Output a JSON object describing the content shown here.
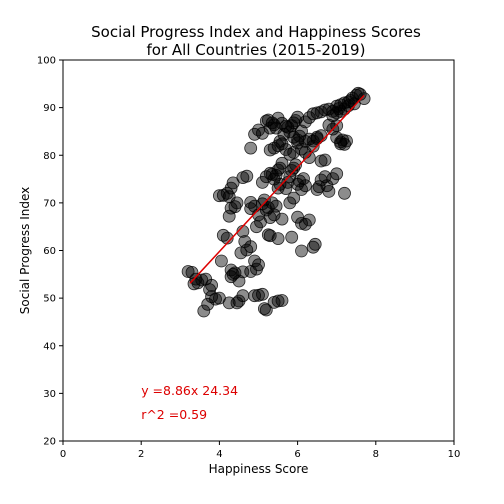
{
  "chart_data": {
    "type": "scatter",
    "title": "Social Progress Index and Happiness Scores\nfor All Countries (2015-2019)",
    "xlabel": "Happiness Score",
    "ylabel": "Social Progress Index",
    "xlim": [
      0,
      10
    ],
    "ylim": [
      20,
      100
    ],
    "x_ticks": [
      "0",
      "2",
      "4",
      "6",
      "8",
      "10"
    ],
    "y_ticks": [
      "20",
      "30",
      "40",
      "50",
      "60",
      "70",
      "80",
      "90",
      "100"
    ],
    "grid": false,
    "marker_color": "#000000",
    "marker_alpha": 0.45,
    "regression": {
      "slope": 8.86,
      "intercept": 24.34,
      "x_range": [
        3.25,
        7.7
      ],
      "color": "#dd0000",
      "equation_label": "y =8.86x 24.34",
      "r2_label": "r^2 =0.59",
      "label_anchor": [
        2.0,
        30.5
      ]
    },
    "points": [
      [
        3.2,
        55.6
      ],
      [
        3.3,
        55.4
      ],
      [
        3.4,
        54.0
      ],
      [
        3.45,
        53.2
      ],
      [
        3.35,
        53.0
      ],
      [
        3.6,
        47.3
      ],
      [
        3.7,
        48.7
      ],
      [
        3.8,
        50.3
      ],
      [
        3.75,
        51.8
      ],
      [
        3.9,
        49.8
      ],
      [
        3.65,
        54.0
      ],
      [
        3.55,
        53.8
      ],
      [
        3.8,
        52.7
      ],
      [
        4.0,
        50.0
      ],
      [
        4.05,
        57.8
      ],
      [
        4.1,
        63.2
      ],
      [
        4.2,
        62.6
      ],
      [
        4.3,
        55.9
      ],
      [
        4.25,
        49.0
      ],
      [
        4.3,
        54.5
      ],
      [
        4.35,
        55.0
      ],
      [
        4.4,
        55.3
      ],
      [
        4.45,
        49.0
      ],
      [
        4.5,
        49.4
      ],
      [
        4.5,
        53.6
      ],
      [
        4.6,
        50.5
      ],
      [
        4.6,
        55.5
      ],
      [
        4.55,
        59.5
      ],
      [
        4.65,
        61.9
      ],
      [
        4.6,
        64.0
      ],
      [
        4.7,
        60.1
      ],
      [
        4.8,
        60.8
      ],
      [
        4.8,
        55.6
      ],
      [
        4.9,
        57.8
      ],
      [
        4.9,
        50.5
      ],
      [
        5.0,
        50.6
      ],
      [
        5.1,
        50.8
      ],
      [
        5.15,
        47.8
      ],
      [
        5.2,
        47.5
      ],
      [
        5.25,
        63.3
      ],
      [
        5.3,
        63.1
      ],
      [
        5.4,
        49.1
      ],
      [
        5.5,
        49.4
      ],
      [
        5.5,
        62.5
      ],
      [
        5.6,
        49.5
      ],
      [
        5.85,
        62.8
      ],
      [
        5.0,
        57.0
      ],
      [
        4.95,
        56.1
      ],
      [
        4.0,
        71.5
      ],
      [
        4.1,
        71.6
      ],
      [
        4.2,
        72.0
      ],
      [
        4.25,
        71.3
      ],
      [
        4.3,
        73.1
      ],
      [
        4.35,
        74.2
      ],
      [
        4.3,
        68.9
      ],
      [
        4.25,
        67.2
      ],
      [
        4.4,
        69.2
      ],
      [
        4.45,
        70.0
      ],
      [
        4.6,
        75.3
      ],
      [
        4.7,
        75.6
      ],
      [
        4.8,
        70.1
      ],
      [
        4.8,
        68.8
      ],
      [
        4.9,
        69.3
      ],
      [
        4.95,
        65.0
      ],
      [
        5.0,
        67.5
      ],
      [
        5.05,
        66.0
      ],
      [
        5.1,
        69.8
      ],
      [
        5.15,
        70.6
      ],
      [
        5.2,
        68.5
      ],
      [
        5.25,
        69.0
      ],
      [
        5.3,
        66.9
      ],
      [
        5.35,
        70.0
      ],
      [
        5.4,
        67.5
      ],
      [
        5.45,
        69.3
      ],
      [
        5.5,
        73.1
      ],
      [
        5.55,
        73.9
      ],
      [
        5.6,
        66.6
      ],
      [
        5.1,
        74.3
      ],
      [
        5.2,
        75.5
      ],
      [
        5.3,
        76.2
      ],
      [
        5.35,
        76.0
      ],
      [
        5.4,
        75.0
      ],
      [
        5.45,
        75.8
      ],
      [
        5.5,
        76.9
      ],
      [
        5.55,
        77.3
      ],
      [
        5.6,
        78.3
      ],
      [
        5.7,
        73.0
      ],
      [
        5.75,
        74.3
      ],
      [
        5.8,
        75.5
      ],
      [
        5.85,
        76.8
      ],
      [
        5.9,
        77.3
      ],
      [
        5.95,
        78.0
      ],
      [
        6.0,
        73.9
      ],
      [
        6.05,
        74.6
      ],
      [
        6.1,
        72.8
      ],
      [
        6.15,
        75.1
      ],
      [
        6.2,
        73.6
      ],
      [
        5.8,
        70.0
      ],
      [
        5.9,
        71.0
      ],
      [
        6.0,
        67.0
      ],
      [
        6.1,
        65.7
      ],
      [
        6.2,
        65.5
      ],
      [
        6.3,
        66.4
      ],
      [
        6.1,
        59.9
      ],
      [
        6.4,
        60.7
      ],
      [
        6.45,
        61.3
      ],
      [
        6.5,
        72.8
      ],
      [
        6.55,
        73.4
      ],
      [
        6.6,
        74.8
      ],
      [
        6.7,
        75.5
      ],
      [
        6.75,
        73.6
      ],
      [
        6.8,
        72.4
      ],
      [
        6.9,
        75.1
      ],
      [
        7.0,
        76.1
      ],
      [
        7.1,
        82.4
      ],
      [
        7.2,
        72.0
      ],
      [
        7.0,
        83.7
      ],
      [
        6.4,
        83.0
      ],
      [
        6.5,
        83.8
      ],
      [
        6.6,
        84.1
      ],
      [
        6.7,
        79.0
      ],
      [
        6.6,
        78.8
      ],
      [
        6.3,
        79.5
      ],
      [
        6.2,
        80.6
      ],
      [
        6.1,
        81.3
      ],
      [
        6.0,
        82.6
      ],
      [
        5.9,
        83.8
      ],
      [
        5.8,
        84.9
      ],
      [
        5.7,
        86.1
      ],
      [
        5.6,
        86.7
      ],
      [
        5.5,
        87.8
      ],
      [
        5.4,
        86.4
      ],
      [
        5.3,
        85.7
      ],
      [
        5.2,
        87.2
      ],
      [
        5.1,
        84.6
      ],
      [
        5.0,
        85.3
      ],
      [
        4.9,
        84.4
      ],
      [
        4.8,
        81.5
      ],
      [
        5.3,
        81.1
      ],
      [
        5.4,
        81.5
      ],
      [
        5.5,
        82.0
      ],
      [
        5.6,
        82.4
      ],
      [
        5.7,
        81.2
      ],
      [
        5.8,
        80.2
      ],
      [
        5.9,
        80.6
      ],
      [
        6.0,
        83.2
      ],
      [
        6.05,
        84.0
      ],
      [
        6.1,
        85.1
      ],
      [
        6.2,
        87.0
      ],
      [
        6.3,
        87.9
      ],
      [
        6.4,
        88.7
      ],
      [
        6.5,
        88.9
      ],
      [
        6.6,
        89.1
      ],
      [
        6.7,
        89.5
      ],
      [
        6.8,
        89.7
      ],
      [
        6.9,
        89.2
      ],
      [
        7.0,
        90.3
      ],
      [
        7.05,
        89.8
      ],
      [
        7.1,
        90.6
      ],
      [
        7.2,
        91.0
      ],
      [
        7.3,
        91.2
      ],
      [
        7.35,
        91.5
      ],
      [
        7.4,
        92.0
      ],
      [
        7.5,
        92.6
      ],
      [
        7.55,
        93.0
      ],
      [
        7.6,
        92.8
      ],
      [
        7.7,
        91.9
      ],
      [
        7.45,
        90.8
      ],
      [
        7.3,
        90.4
      ],
      [
        7.2,
        89.7
      ],
      [
        7.1,
        89.2
      ],
      [
        7.0,
        88.9
      ],
      [
        6.9,
        88.3
      ],
      [
        6.8,
        86.3
      ],
      [
        6.9,
        85.5
      ],
      [
        7.0,
        86.2
      ],
      [
        7.1,
        82.8
      ],
      [
        7.15,
        83.2
      ],
      [
        7.25,
        83.0
      ],
      [
        7.2,
        82.3
      ],
      [
        6.5,
        83.5
      ],
      [
        6.4,
        81.9
      ],
      [
        6.3,
        83.4
      ],
      [
        6.2,
        82.9
      ],
      [
        5.9,
        86.8
      ],
      [
        5.95,
        87.3
      ],
      [
        6.0,
        88.0
      ],
      [
        5.85,
        86.2
      ],
      [
        5.75,
        85.9
      ],
      [
        5.65,
        84.4
      ],
      [
        5.55,
        82.9
      ],
      [
        5.45,
        85.7
      ],
      [
        5.35,
        86.8
      ],
      [
        5.25,
        87.4
      ]
    ]
  }
}
